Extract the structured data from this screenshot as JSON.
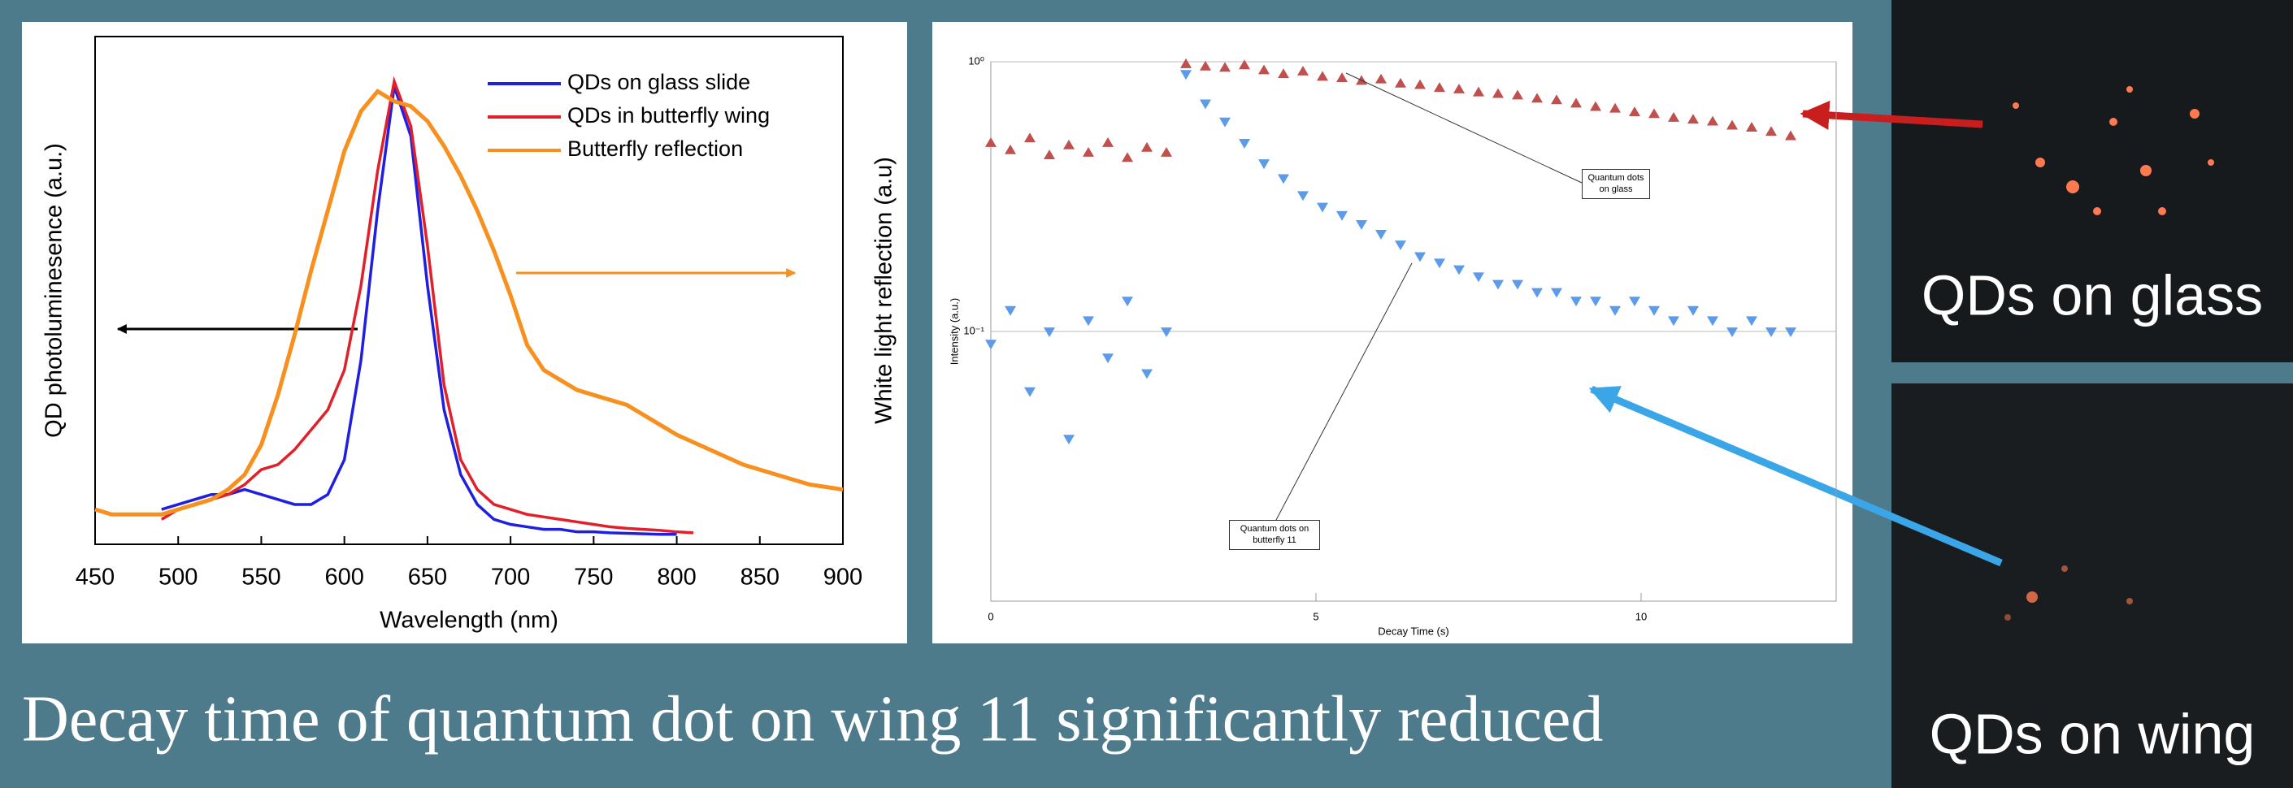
{
  "chart_data": [
    {
      "type": "line",
      "x_label": "Wavelength (nm)",
      "y_label": "QD photoluminesence (a.u.)",
      "y2_label": "White light reflection (a.u)",
      "xlim": [
        450,
        900
      ],
      "xticks": [
        450,
        500,
        550,
        600,
        650,
        700,
        750,
        800,
        850,
        900
      ],
      "ylim": [
        -0.02,
        1
      ],
      "x": [
        450,
        460,
        470,
        480,
        490,
        500,
        510,
        520,
        530,
        540,
        550,
        560,
        570,
        580,
        590,
        600,
        610,
        620,
        630,
        640,
        650,
        660,
        670,
        680,
        690,
        700,
        710,
        720,
        730,
        740,
        750,
        760,
        770,
        780,
        790,
        800,
        810,
        820,
        830,
        840,
        850,
        860,
        870,
        880,
        890,
        900
      ],
      "series": [
        {
          "name": "QDs on glass slide",
          "color": "#1f1fe0",
          "values": [
            null,
            null,
            null,
            null,
            0.05,
            0.06,
            0.07,
            0.08,
            0.08,
            0.09,
            0.08,
            0.07,
            0.06,
            0.06,
            0.08,
            0.15,
            0.35,
            0.65,
            0.9,
            0.8,
            0.5,
            0.25,
            0.12,
            0.06,
            0.03,
            0.02,
            0.015,
            0.01,
            0.01,
            0.005,
            0.005,
            0.003,
            0.002,
            0.001,
            0,
            0,
            null,
            null,
            null,
            null,
            null,
            null,
            null,
            null,
            null,
            null
          ]
        },
        {
          "name": "QDs in butterfly wing",
          "color": "#e0202a",
          "values": [
            null,
            null,
            null,
            null,
            0.03,
            0.05,
            0.06,
            0.07,
            0.08,
            0.1,
            0.13,
            0.14,
            0.17,
            0.21,
            0.25,
            0.33,
            0.5,
            0.73,
            0.91,
            0.82,
            0.58,
            0.3,
            0.15,
            0.09,
            0.06,
            0.05,
            0.04,
            0.035,
            0.03,
            0.025,
            0.02,
            0.015,
            0.012,
            0.01,
            0.008,
            0.005,
            0.003,
            null,
            null,
            null,
            null,
            null,
            null,
            null,
            null,
            null
          ]
        },
        {
          "name": "Butterfly reflection",
          "color": "#f7901e",
          "values": [
            0.05,
            0.04,
            0.04,
            0.04,
            0.04,
            0.05,
            0.06,
            0.07,
            0.09,
            0.12,
            0.18,
            0.28,
            0.4,
            0.53,
            0.65,
            0.77,
            0.85,
            0.89,
            0.87,
            0.86,
            0.83,
            0.78,
            0.72,
            0.65,
            0.57,
            0.48,
            0.38,
            0.33,
            0.31,
            0.29,
            0.28,
            0.27,
            0.26,
            0.24,
            0.22,
            0.2,
            0.185,
            0.17,
            0.155,
            0.14,
            0.13,
            0.12,
            0.11,
            0.1,
            0.095,
            0.09
          ]
        }
      ]
    },
    {
      "type": "scatter",
      "x_label": "Decay Time (s)",
      "y_label": "Intensity (a.u.)",
      "log_y": true,
      "grid": true,
      "xlim": [
        0,
        13
      ],
      "xticks": [
        0,
        5,
        10
      ],
      "ylim": [
        0.01,
        1
      ],
      "yticks": [
        {
          "value": 1,
          "label": "10⁰"
        },
        {
          "value": 0.1,
          "label": "10⁻¹"
        }
      ],
      "annotations": [
        "Quantum dots on glass",
        "Quantum dots on butterfly 11"
      ],
      "x": [
        0,
        0.3,
        0.6,
        0.9,
        1.2,
        1.5,
        1.8,
        2.1,
        2.4,
        2.7,
        3,
        3.3,
        3.6,
        3.9,
        4.2,
        4.5,
        4.8,
        5.1,
        5.4,
        5.7,
        6,
        6.3,
        6.6,
        6.9,
        7.2,
        7.5,
        7.8,
        8.1,
        8.4,
        8.7,
        9,
        9.3,
        9.6,
        9.9,
        10.2,
        10.5,
        10.8,
        11.1,
        11.4,
        11.7,
        12,
        12.3
      ],
      "series": [
        {
          "color": "#c0504d",
          "values": [
            0.5,
            0.47,
            0.52,
            0.45,
            0.49,
            0.46,
            0.5,
            0.44,
            0.48,
            0.46,
            0.98,
            0.96,
            0.95,
            0.97,
            0.93,
            0.9,
            0.92,
            0.88,
            0.87,
            0.85,
            0.86,
            0.83,
            0.82,
            0.8,
            0.79,
            0.77,
            0.76,
            0.75,
            0.73,
            0.72,
            0.7,
            0.68,
            0.67,
            0.65,
            0.64,
            0.62,
            0.61,
            0.6,
            0.58,
            0.57,
            0.55,
            0.53
          ]
        },
        {
          "color": "#5b9bea",
          "values": [
            0.09,
            0.12,
            0.06,
            0.1,
            0.04,
            0.11,
            0.08,
            0.13,
            0.07,
            0.1,
            0.9,
            0.7,
            0.6,
            0.5,
            0.42,
            0.37,
            0.32,
            0.29,
            0.27,
            0.25,
            0.23,
            0.21,
            0.19,
            0.18,
            0.17,
            0.16,
            0.15,
            0.15,
            0.14,
            0.14,
            0.13,
            0.13,
            0.12,
            0.13,
            0.12,
            0.11,
            0.12,
            0.11,
            0.1,
            0.11,
            0.1,
            0.1
          ]
        }
      ]
    }
  ],
  "slide": {
    "caption": "Decay time of quantum dot on wing 11 significantly reduced",
    "image_labels": [
      "QDs on glass",
      "QDs on wing"
    ]
  }
}
